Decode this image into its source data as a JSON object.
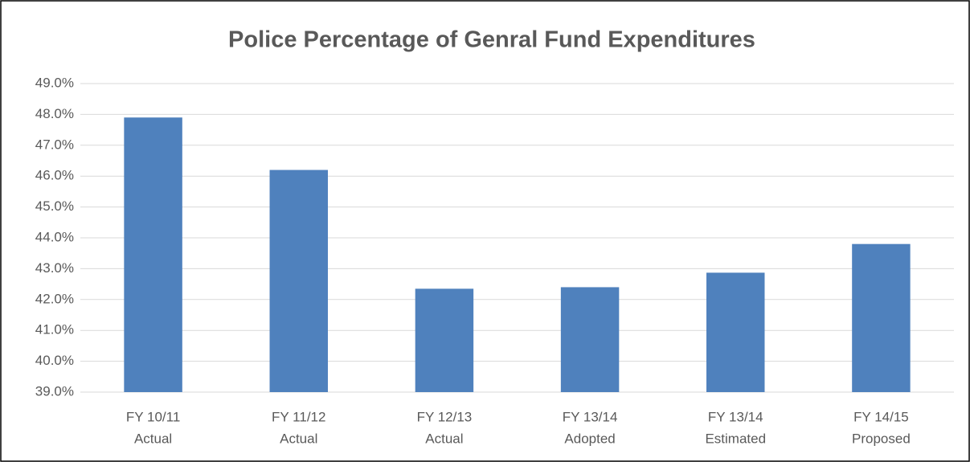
{
  "chart_data": {
    "type": "bar",
    "title": "Police Percentage of Genral Fund Expenditures",
    "categories": [
      [
        "FY 10/11",
        "Actual"
      ],
      [
        "FY 11/12",
        "Actual"
      ],
      [
        "FY 12/13",
        "Actual"
      ],
      [
        "FY 13/14",
        "Adopted"
      ],
      [
        "FY 13/14",
        "Estimated"
      ],
      [
        "FY 14/15",
        "Proposed"
      ]
    ],
    "values": [
      47.9,
      46.2,
      42.35,
      42.4,
      42.87,
      43.8
    ],
    "color": "#4f81bd",
    "ylim": [
      39,
      49
    ],
    "yticks": [
      {
        "value": 39,
        "label": "39.0%"
      },
      {
        "value": 40,
        "label": "40.0%"
      },
      {
        "value": 41,
        "label": "41.0%"
      },
      {
        "value": 42,
        "label": "42.0%"
      },
      {
        "value": 43,
        "label": "43.0%"
      },
      {
        "value": 44,
        "label": "44.0%"
      },
      {
        "value": 45,
        "label": "45.0%"
      },
      {
        "value": 46,
        "label": "46.0%"
      },
      {
        "value": 47,
        "label": "47.0%"
      },
      {
        "value": 48,
        "label": "48.0%"
      },
      {
        "value": 49,
        "label": "49.0%"
      }
    ],
    "grid": true
  }
}
